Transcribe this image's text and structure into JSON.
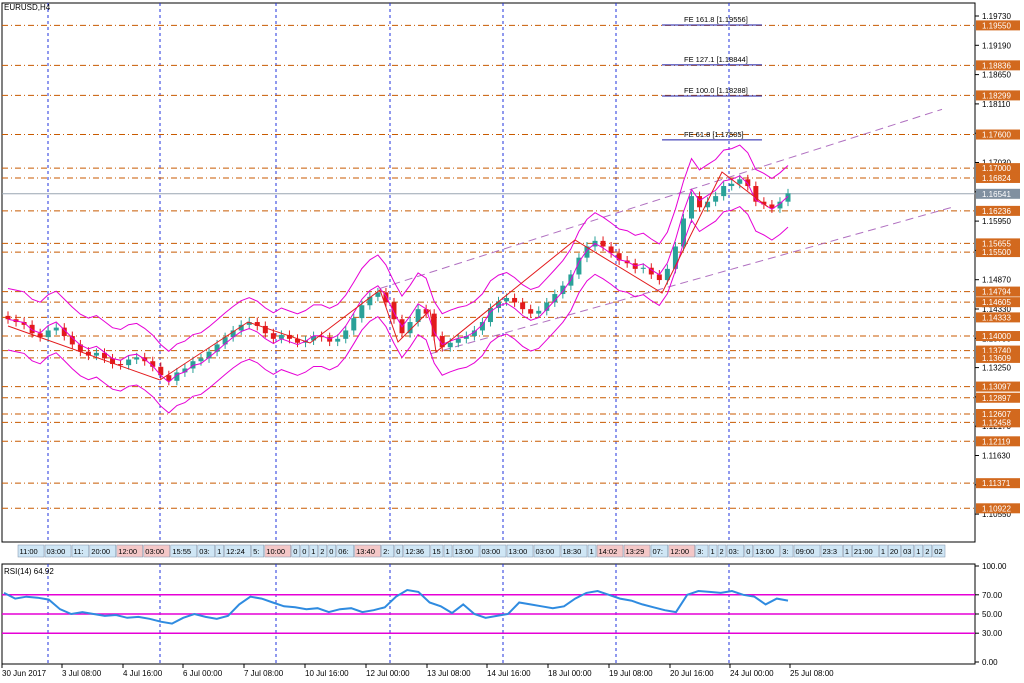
{
  "symbol_title": "EURUSD,H4",
  "rsi_title": "RSI(14) 64.92",
  "fib_extensions": [
    {
      "label": "FE 161.8 [1.19556]",
      "price": 1.19556
    },
    {
      "label": "FE 127.1 [1.18844]",
      "price": 1.18844
    },
    {
      "label": "FE 100.0 [1.18288]",
      "price": 1.18288
    },
    {
      "label": "FE 61.8 [1.17505]",
      "price": 1.17505
    }
  ],
  "price_axis_ticks": [
    "1.19730",
    "1.19190",
    "1.18650",
    "1.18110",
    "1.17570",
    "1.17030",
    "1.16490",
    "1.15950",
    "1.15410",
    "1.14870",
    "1.14330",
    "1.13790",
    "1.13250",
    "1.12710",
    "1.12170",
    "1.11630",
    "1.11090",
    "1.10550"
  ],
  "level_lines": [
    {
      "text": "1.19550",
      "price": 1.1955
    },
    {
      "text": "1.18836",
      "price": 1.18836
    },
    {
      "text": "1.18299",
      "price": 1.18299
    },
    {
      "text": "1.17600",
      "price": 1.176
    },
    {
      "text": "1.17000",
      "price": 1.17
    },
    {
      "text": "1.16824",
      "price": 1.16824
    },
    {
      "text": "1.16236",
      "price": 1.16236
    },
    {
      "text": "1.15655",
      "price": 1.15655
    },
    {
      "text": "1.15500",
      "price": 1.155
    },
    {
      "text": "1.14794",
      "price": 1.14794
    },
    {
      "text": "1.14605",
      "price": 1.14605
    },
    {
      "text": "1.14333",
      "price": 1.14333
    },
    {
      "text": "1.14000",
      "price": 1.14
    },
    {
      "text": "1.13740",
      "price": 1.1374
    },
    {
      "text": "1.13609",
      "price": 1.13609
    },
    {
      "text": "1.13097",
      "price": 1.13097
    },
    {
      "text": "1.12897",
      "price": 1.12897
    },
    {
      "text": "1.12607",
      "price": 1.12607
    },
    {
      "text": "1.12458",
      "price": 1.12458
    },
    {
      "text": "1.12119",
      "price": 1.12119
    },
    {
      "text": "1.11371",
      "price": 1.11371
    },
    {
      "text": "1.10922",
      "price": 1.10922
    }
  ],
  "current_price": {
    "text": "1.16541",
    "price": 1.16541
  },
  "rsi_axis_ticks": [
    "100.00",
    "70.00",
    "50.00",
    "30.00",
    "0.00"
  ],
  "rsi_levels": [
    70,
    50,
    30
  ],
  "time_axis_labels": [
    "30 Jun 2017",
    "3 Jul 08:00",
    "4 Jul 16:00",
    "6 Jul 00:00",
    "7 Jul 08:00",
    "10 Jul 16:00",
    "12 Jul 00:00",
    "13 Jul 08:00",
    "14 Jul 16:00",
    "18 Jul 00:00",
    "19 Jul 08:00",
    "20 Jul 16:00",
    "24 Jul 00:00",
    "25 Jul 08:00"
  ],
  "session_strip": [
    "11:00",
    "03:00",
    "11:",
    "20:00",
    "12:00",
    "03:00",
    "15:55",
    "03:",
    "1",
    "12:24",
    "5:",
    "10:00",
    "0",
    "0",
    "1",
    "2",
    "0",
    "06:",
    "13:40",
    "2:",
    "0",
    "12:36",
    "15",
    "1",
    "13:00",
    "03:00",
    "13:00",
    "03:00",
    "18:30",
    "1",
    "14:02",
    "13:29",
    "07:",
    "12:00",
    "3:",
    "1",
    "2",
    "03:",
    "0",
    "13:00",
    "3:",
    "09:00",
    "23:3",
    "1",
    "21:00",
    "1",
    "20",
    "03",
    "1",
    "2",
    "02"
  ],
  "colors": {
    "bull": "#2aa198",
    "bear": "#e31a1c",
    "bollinger": "#e600d6",
    "fib_line": "#1a1aa6",
    "level_line": "#c85a00",
    "channel": "#b070c0",
    "rsi_line": "#2f8be0",
    "rsi_level": "#e600d6",
    "level_badge": "#d2691e",
    "current_badge": "#8090a0"
  }
}
